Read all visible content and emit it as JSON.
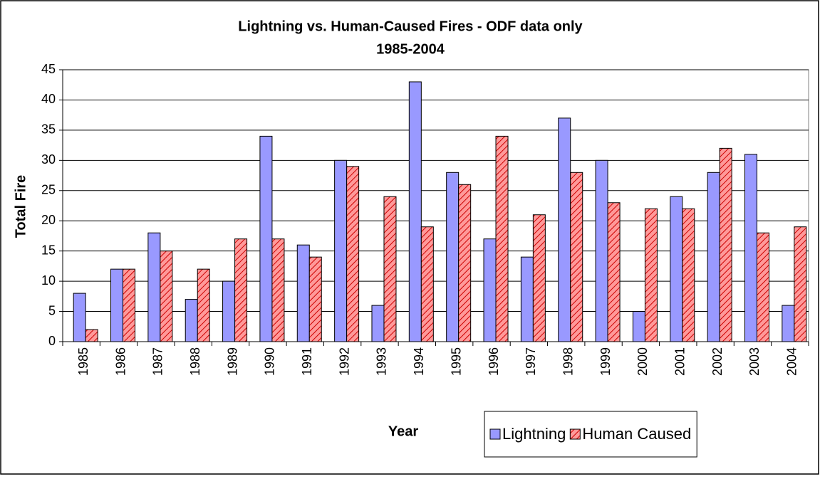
{
  "chart_data": {
    "type": "bar",
    "title": "Lightning vs. Human-Caused Fires - ODF data only",
    "subtitle": "1985-2004",
    "x_label": "Year",
    "y_label": "Total Fire",
    "categories": [
      "1985",
      "1986",
      "1987",
      "1988",
      "1989",
      "1990",
      "1991",
      "1992",
      "1993",
      "1994",
      "1995",
      "1996",
      "1997",
      "1998",
      "1999",
      "2000",
      "2001",
      "2002",
      "2003",
      "2004"
    ],
    "series": [
      {
        "name": "Lightning",
        "color": "#9999ff",
        "values": [
          8,
          12,
          18,
          7,
          10,
          34,
          16,
          30,
          6,
          43,
          28,
          17,
          14,
          37,
          30,
          5,
          24,
          28,
          31,
          6
        ]
      },
      {
        "name": "Human Caused",
        "color": "#ff9999",
        "hatch": true,
        "values": [
          2,
          12,
          15,
          12,
          17,
          17,
          14,
          29,
          24,
          19,
          26,
          34,
          21,
          28,
          23,
          22,
          22,
          32,
          18,
          19
        ]
      }
    ],
    "ylim": [
      0,
      45
    ],
    "yticks": [
      0,
      5,
      10,
      15,
      20,
      25,
      30,
      35,
      40,
      45
    ],
    "grid": true
  }
}
